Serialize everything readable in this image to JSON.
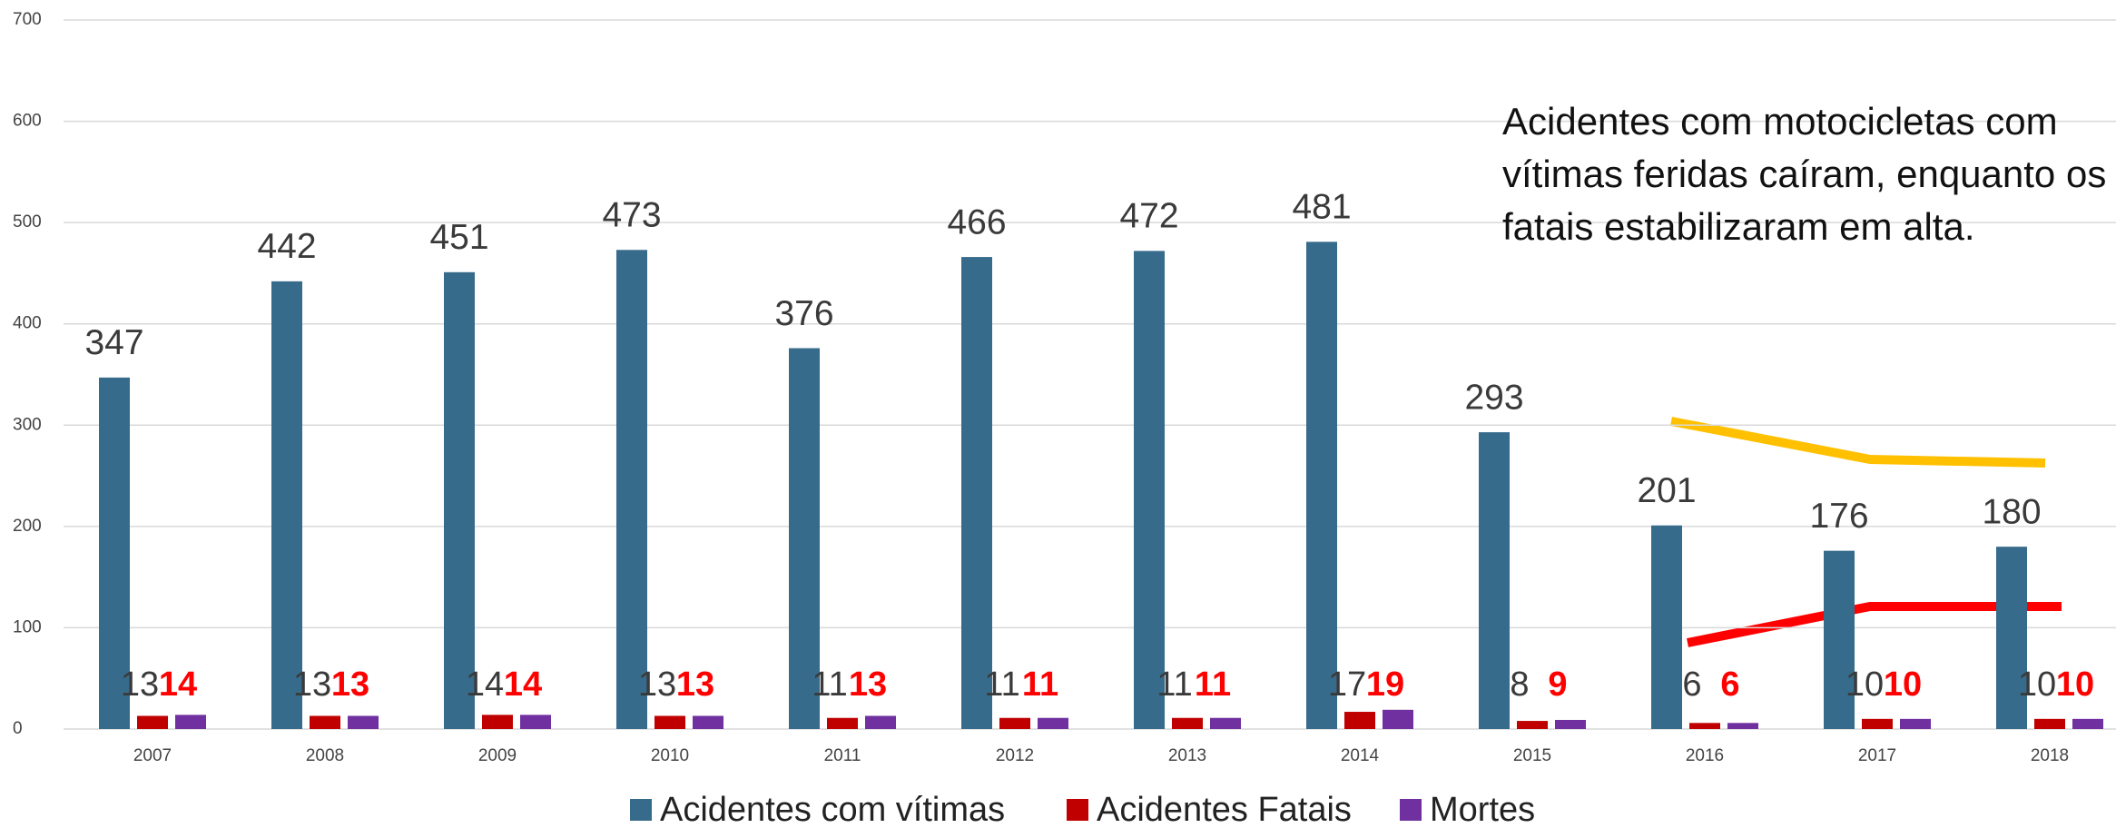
{
  "chart_data": {
    "type": "bar",
    "categories": [
      "2007",
      "2008",
      "2009",
      "2010",
      "2011",
      "2012",
      "2013",
      "2014",
      "2015",
      "2016",
      "2017",
      "2018"
    ],
    "series": [
      {
        "name": "Acidentes com vítimas",
        "color": "#376b8b",
        "values": [
          347,
          442,
          451,
          473,
          376,
          466,
          472,
          481,
          293,
          201,
          176,
          180
        ]
      },
      {
        "name": "Acidentes Fatais",
        "color": "#c00000",
        "values": [
          13,
          13,
          14,
          13,
          11,
          11,
          11,
          17,
          8,
          6,
          10,
          10
        ]
      },
      {
        "name": "Mortes",
        "color": "#7030a0",
        "values": [
          14,
          13,
          14,
          13,
          13,
          11,
          11,
          19,
          9,
          6,
          10,
          10
        ]
      }
    ],
    "ylim": [
      0,
      700
    ],
    "yticks": [
      0,
      100,
      200,
      300,
      400,
      500,
      600,
      700
    ],
    "grid": true,
    "annotation": [
      "Acidentes com motocicletas com",
      "vítimas feridas caíram, enquanto os",
      "fatais estabilizaram em alta."
    ]
  }
}
